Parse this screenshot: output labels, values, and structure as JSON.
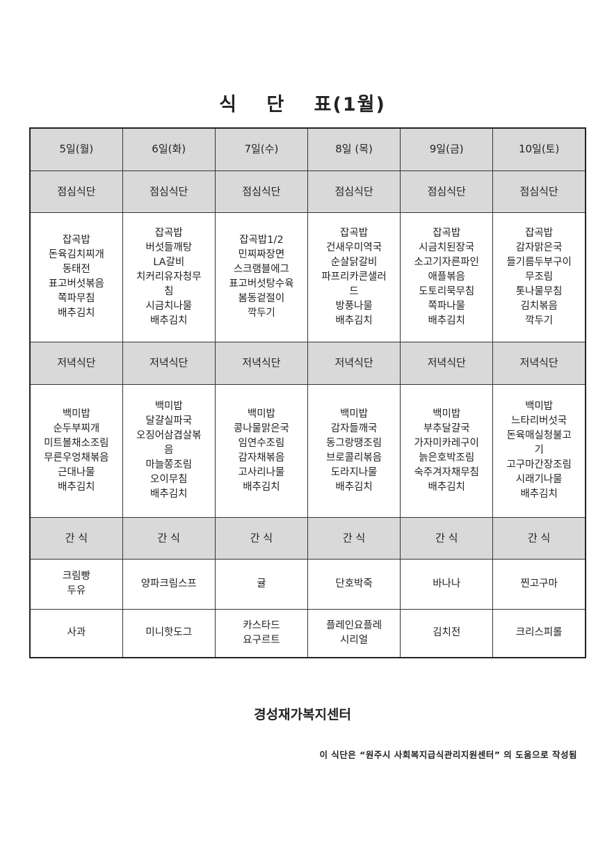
{
  "title": "식  단  표(1월)",
  "days": [
    "5일(월)",
    "6일(화)",
    "7일(수)",
    "8일 (목)",
    "9일(금)",
    "10일(토)"
  ],
  "lunch_label": "점심식단",
  "dinner_label": "저녁식단",
  "snack_label": "간 식",
  "lunch": [
    [
      "잡곡밥",
      "돈육김치찌개",
      "동태전",
      "표고버섯볶음",
      "쪽파무침",
      "배추김치"
    ],
    [
      "잡곡밥",
      "버섯들깨탕",
      "LA갈비",
      "치커리유자청무",
      "침",
      "시금치나물",
      "배추김치"
    ],
    [
      "잡곡밥1/2",
      "민찌짜장면",
      "스크램블에그",
      "표고버섯탕수육",
      "봄동겉절이",
      "깍두기"
    ],
    [
      "잡곡밥",
      "건새우미역국",
      "순살닭갈비",
      "파프리카콘샐러",
      "드",
      "방풍나물",
      "배추김치"
    ],
    [
      "잡곡밥",
      "시금치된장국",
      "소고기자른파인",
      "애플볶음",
      "도토리묵무침",
      "쪽파나물",
      "배추김치"
    ],
    [
      "잡곡밥",
      "감자맑은국",
      "들기름두부구이",
      "무조림",
      "톳나물무침",
      "김치볶음",
      "깍두기"
    ]
  ],
  "dinner": [
    [
      "백미밥",
      "순두부찌개",
      "미트볼채소조림",
      "무른우엉채볶음",
      "근대나물",
      "배추김치"
    ],
    [
      "백미밥",
      "달걀실파국",
      "오징어삼겹살볶",
      "음",
      "마늘쫑조림",
      "오이무침",
      "배추김치"
    ],
    [
      "백미밥",
      "콩나물맑은국",
      "임연수조림",
      "감자채볶음",
      "고사리나물",
      "배추김치"
    ],
    [
      "백미밥",
      "감자들깨국",
      "동그랑땡조림",
      "브로콜리볶음",
      "도라지나물",
      "배추김치"
    ],
    [
      "백미밥",
      "부추달걀국",
      "가자미카레구이",
      "늙은호박조림",
      "숙주겨자채무침",
      "배추김치"
    ],
    [
      "백미밥",
      "느타리버섯국",
      "돈육매실청불고",
      "기",
      "고구마간장조림",
      "시래기나물",
      "배추김치"
    ]
  ],
  "snack1": [
    [
      "크림빵",
      "두유"
    ],
    [
      "양파크림스프"
    ],
    [
      "귤"
    ],
    [
      "단호박죽"
    ],
    [
      "바나나"
    ],
    [
      "찐고구마"
    ]
  ],
  "snack2": [
    [
      "사과"
    ],
    [
      "미니핫도그"
    ],
    [
      "카스타드",
      "요구르트"
    ],
    [
      "플레인요플레",
      "시리얼"
    ],
    [
      "김치전"
    ],
    [
      "크리스피롤"
    ]
  ],
  "center_name": "경성재가복지센터",
  "footer_note": "이 식단은 “원주시 사회복지급식관리지원센터” 의 도움으로 작성됨",
  "colors": {
    "header_bg": "#d9d9d9",
    "border": "#333333"
  }
}
